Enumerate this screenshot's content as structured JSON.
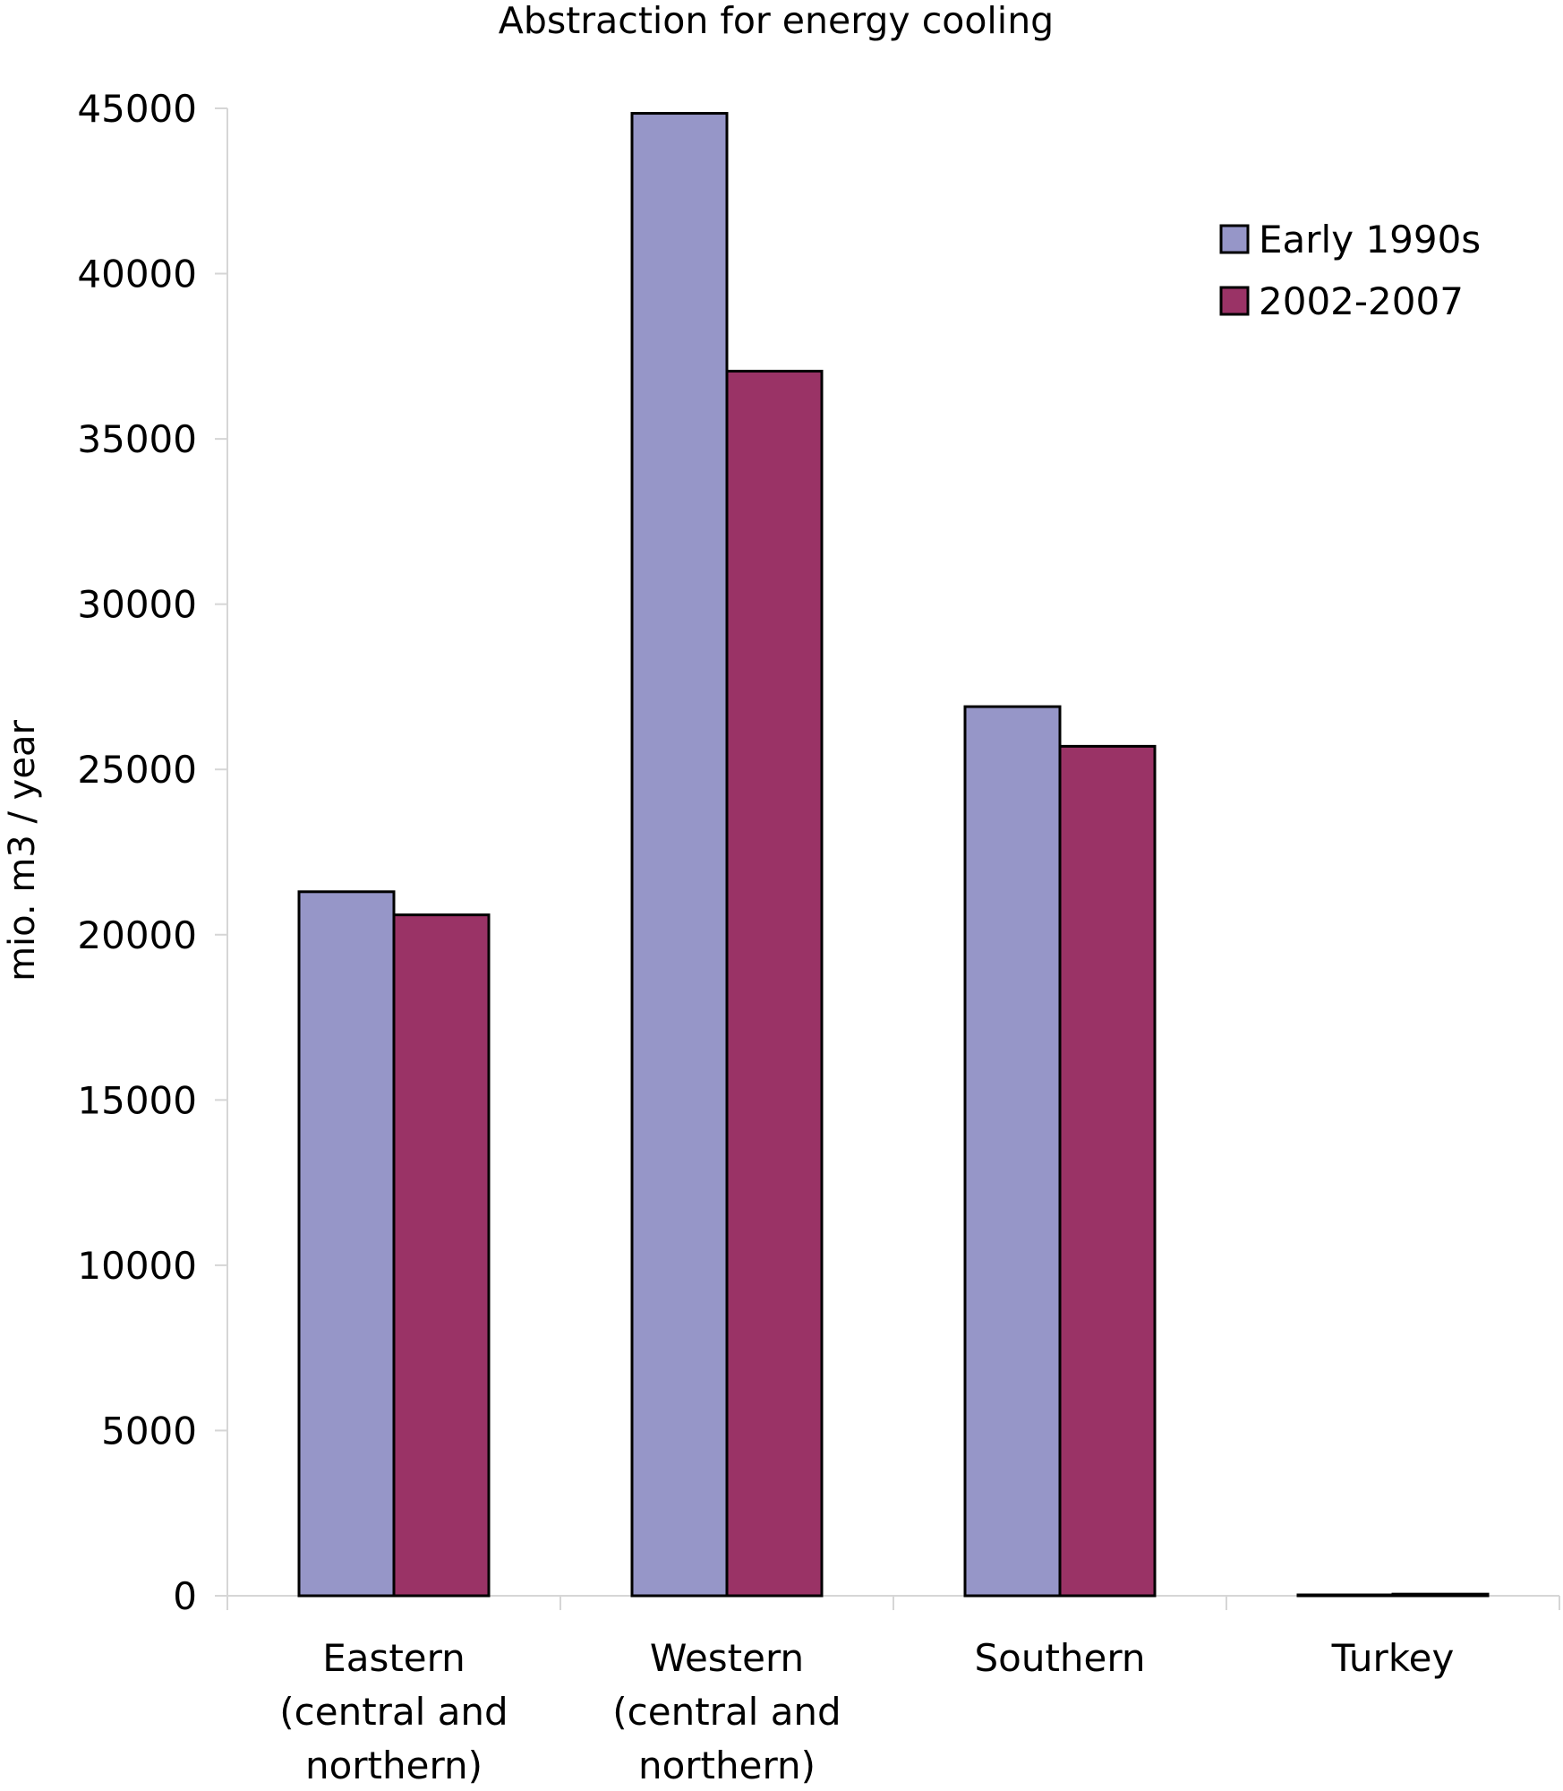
{
  "chart_data": {
    "type": "bar",
    "title": "Abstraction for energy cooling",
    "xlabel": "",
    "ylabel": "mio. m3 / year",
    "ylim": [
      0,
      45000
    ],
    "yticks": [
      0,
      5000,
      10000,
      15000,
      20000,
      25000,
      30000,
      35000,
      40000,
      45000
    ],
    "grid": false,
    "legend_position": "top-right",
    "categories": [
      [
        "Eastern",
        "(central and",
        "northern)"
      ],
      [
        "Western",
        "(central and",
        "northern)"
      ],
      [
        "Southern"
      ],
      [
        "Turkey"
      ]
    ],
    "series": [
      {
        "name": "Early 1990s",
        "color": "#9696c8",
        "values": [
          21300,
          44850,
          26900,
          0
        ]
      },
      {
        "name": "2002-2007",
        "color": "#9a3366",
        "values": [
          20600,
          37050,
          25700,
          50
        ]
      }
    ]
  }
}
